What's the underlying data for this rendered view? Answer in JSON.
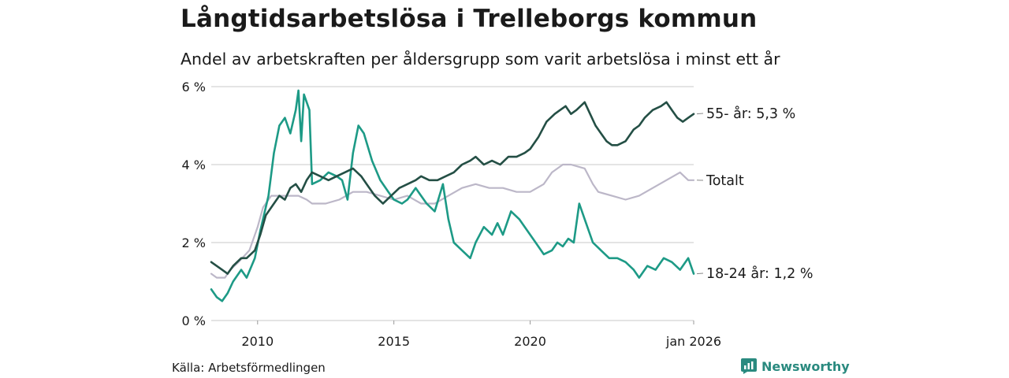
{
  "title": "Långtidsarbetslösa i Trelleborgs kommun",
  "subtitle": "Andel av arbetskraften per åldersgrupp som varit arbetslösa i minst ett år",
  "source": "Källa: Arbetsförmedlingen",
  "brand": "Newsworthy",
  "colors": {
    "older": "#244f45",
    "young": "#1d9a86",
    "total": "#bcb7c8",
    "grid": "#dcdcdc",
    "brand": "#2a8a7f"
  },
  "chart_data": {
    "type": "line",
    "xlim": [
      2008.3,
      2026.0
    ],
    "ylim": [
      0,
      6
    ],
    "ytick_values": [
      0,
      2,
      4,
      6
    ],
    "ytick_labels": [
      "0 %",
      "2 %",
      "4 %",
      "6 %"
    ],
    "xtick_values": [
      2010,
      2015,
      2020,
      2026
    ],
    "xtick_labels": [
      "2010",
      "2015",
      "2020",
      "jan 2026"
    ],
    "series": [
      {
        "name": "Totalt",
        "key": "total",
        "label": "Totalt",
        "x": [
          2008.3,
          2008.5,
          2008.8,
          2009.0,
          2009.3,
          2009.7,
          2010.0,
          2010.2,
          2010.5,
          2010.8,
          2011.0,
          2011.5,
          2011.8,
          2012.0,
          2012.5,
          2013.0,
          2013.5,
          2014.0,
          2014.5,
          2015.0,
          2015.5,
          2016.0,
          2016.5,
          2017.0,
          2017.5,
          2018.0,
          2018.5,
          2019.0,
          2019.5,
          2020.0,
          2020.5,
          2020.8,
          2021.2,
          2021.5,
          2022.0,
          2022.3,
          2022.5,
          2023.0,
          2023.5,
          2024.0,
          2024.5,
          2025.0,
          2025.5,
          2025.8,
          2026.0
        ],
        "values": [
          1.2,
          1.1,
          1.1,
          1.3,
          1.5,
          1.8,
          2.4,
          2.9,
          3.2,
          3.2,
          3.2,
          3.2,
          3.1,
          3.0,
          3.0,
          3.1,
          3.3,
          3.3,
          3.2,
          3.1,
          3.2,
          3.0,
          3.0,
          3.2,
          3.4,
          3.5,
          3.4,
          3.4,
          3.3,
          3.3,
          3.5,
          3.8,
          4.0,
          4.0,
          3.9,
          3.5,
          3.3,
          3.2,
          3.1,
          3.2,
          3.4,
          3.6,
          3.8,
          3.6,
          3.6
        ]
      },
      {
        "name": "55- år",
        "key": "older",
        "label": "55- år: 5,3 %",
        "x": [
          2008.3,
          2008.5,
          2008.7,
          2008.9,
          2009.1,
          2009.4,
          2009.6,
          2009.9,
          2010.1,
          2010.3,
          2010.6,
          2010.8,
          2011.0,
          2011.2,
          2011.4,
          2011.6,
          2011.8,
          2012.0,
          2012.3,
          2012.6,
          2012.9,
          2013.2,
          2013.5,
          2013.8,
          2014.0,
          2014.3,
          2014.6,
          2014.9,
          2015.2,
          2015.5,
          2015.8,
          2016.0,
          2016.3,
          2016.6,
          2016.9,
          2017.2,
          2017.5,
          2017.8,
          2018.0,
          2018.3,
          2018.6,
          2018.9,
          2019.2,
          2019.5,
          2019.8,
          2020.0,
          2020.3,
          2020.6,
          2020.9,
          2021.1,
          2021.3,
          2021.5,
          2021.7,
          2022.0,
          2022.2,
          2022.4,
          2022.6,
          2022.8,
          2023.0,
          2023.2,
          2023.5,
          2023.8,
          2024.0,
          2024.2,
          2024.5,
          2024.8,
          2025.0,
          2025.2,
          2025.4,
          2025.6,
          2025.8,
          2026.0
        ],
        "values": [
          1.5,
          1.4,
          1.3,
          1.2,
          1.4,
          1.6,
          1.6,
          1.8,
          2.2,
          2.7,
          3.0,
          3.2,
          3.1,
          3.4,
          3.5,
          3.3,
          3.6,
          3.8,
          3.7,
          3.6,
          3.7,
          3.8,
          3.9,
          3.7,
          3.5,
          3.2,
          3.0,
          3.2,
          3.4,
          3.5,
          3.6,
          3.7,
          3.6,
          3.6,
          3.7,
          3.8,
          4.0,
          4.1,
          4.2,
          4.0,
          4.1,
          4.0,
          4.2,
          4.2,
          4.3,
          4.4,
          4.7,
          5.1,
          5.3,
          5.4,
          5.5,
          5.3,
          5.4,
          5.6,
          5.3,
          5.0,
          4.8,
          4.6,
          4.5,
          4.5,
          4.6,
          4.9,
          5.0,
          5.2,
          5.4,
          5.5,
          5.6,
          5.4,
          5.2,
          5.1,
          5.2,
          5.3
        ]
      },
      {
        "name": "18-24 år",
        "key": "young",
        "label": "18-24 år: 1,2 %",
        "x": [
          2008.3,
          2008.5,
          2008.7,
          2008.9,
          2009.1,
          2009.4,
          2009.6,
          2009.9,
          2010.1,
          2010.4,
          2010.6,
          2010.8,
          2011.0,
          2011.2,
          2011.4,
          2011.5,
          2011.6,
          2011.7,
          2011.9,
          2012.0,
          2012.3,
          2012.6,
          2012.9,
          2013.1,
          2013.3,
          2013.5,
          2013.7,
          2013.9,
          2014.2,
          2014.5,
          2014.8,
          2015.0,
          2015.3,
          2015.5,
          2015.8,
          2016.0,
          2016.2,
          2016.5,
          2016.8,
          2017.0,
          2017.2,
          2017.5,
          2017.8,
          2018.0,
          2018.3,
          2018.6,
          2018.8,
          2019.0,
          2019.3,
          2019.6,
          2019.9,
          2020.2,
          2020.5,
          2020.8,
          2021.0,
          2021.2,
          2021.4,
          2021.6,
          2021.8,
          2022.0,
          2022.3,
          2022.6,
          2022.9,
          2023.2,
          2023.5,
          2023.8,
          2024.0,
          2024.3,
          2024.6,
          2024.9,
          2025.2,
          2025.5,
          2025.8,
          2026.0
        ],
        "values": [
          0.8,
          0.6,
          0.5,
          0.7,
          1.0,
          1.3,
          1.1,
          1.6,
          2.3,
          3.2,
          4.3,
          5.0,
          5.2,
          4.8,
          5.4,
          5.9,
          4.6,
          5.8,
          5.4,
          3.5,
          3.6,
          3.8,
          3.7,
          3.6,
          3.1,
          4.3,
          5.0,
          4.8,
          4.1,
          3.6,
          3.3,
          3.1,
          3.0,
          3.1,
          3.4,
          3.2,
          3.0,
          2.8,
          3.5,
          2.6,
          2.0,
          1.8,
          1.6,
          2.0,
          2.4,
          2.2,
          2.5,
          2.2,
          2.8,
          2.6,
          2.3,
          2.0,
          1.7,
          1.8,
          2.0,
          1.9,
          2.1,
          2.0,
          3.0,
          2.6,
          2.0,
          1.8,
          1.6,
          1.6,
          1.5,
          1.3,
          1.1,
          1.4,
          1.3,
          1.6,
          1.5,
          1.3,
          1.6,
          1.2
        ]
      }
    ],
    "title": "Långtidsarbetslösa i Trelleborgs kommun",
    "xlabel": "",
    "ylabel": ""
  }
}
